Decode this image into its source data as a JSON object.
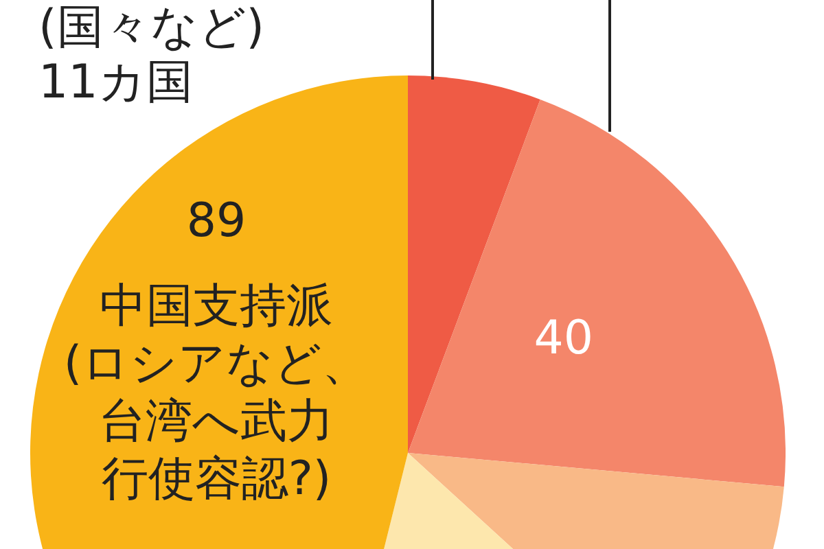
{
  "chart_data": {
    "type": "pie",
    "categories": [
      null,
      null,
      null,
      null,
      "中国支持派(ロシアなど、台湾へ武力行使容認?)"
    ],
    "values": [
      11,
      40,
      20,
      33,
      89
    ],
    "colors": [
      "#ef5b45",
      "#f4866a",
      "#f9b987",
      "#fde7ad",
      "#f9b417"
    ],
    "value_labels": [
      null,
      "40",
      null,
      null,
      "89"
    ],
    "annotations": [
      "(国々など)\n11カ国"
    ],
    "legend": false
  }
}
